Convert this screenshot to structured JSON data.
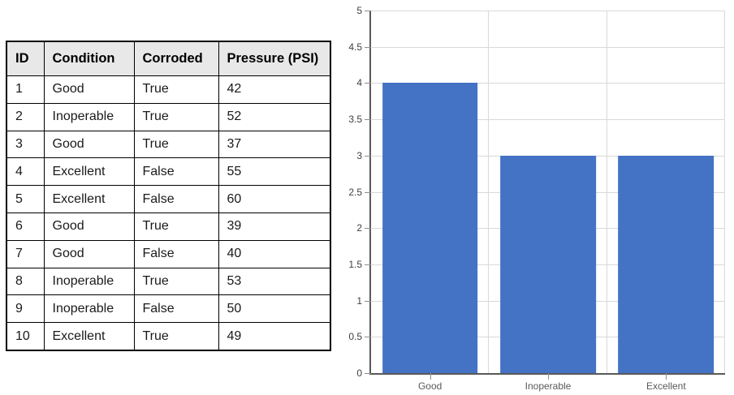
{
  "table": {
    "headers": [
      "ID",
      "Condition",
      "Corroded",
      "Pressure (PSI)"
    ],
    "rows": [
      [
        "1",
        "Good",
        "True",
        "42"
      ],
      [
        "2",
        "Inoperable",
        "True",
        "52"
      ],
      [
        "3",
        "Good",
        "True",
        "37"
      ],
      [
        "4",
        "Excellent",
        "False",
        "55"
      ],
      [
        "5",
        "Excellent",
        "False",
        "60"
      ],
      [
        "6",
        "Good",
        "True",
        "39"
      ],
      [
        "7",
        "Good",
        "False",
        "40"
      ],
      [
        "8",
        "Inoperable",
        "True",
        "53"
      ],
      [
        "9",
        "Inoperable",
        "False",
        "50"
      ],
      [
        "10",
        "Excellent",
        "True",
        "49"
      ]
    ],
    "header_bg": "#E8E8E8",
    "border_color": "#000000"
  },
  "chart_data": {
    "type": "bar",
    "categories": [
      "Good",
      "Inoperable",
      "Excellent"
    ],
    "values": [
      4,
      3,
      3
    ],
    "title": "",
    "xlabel": "",
    "ylabel": "",
    "ylim": [
      0,
      5
    ],
    "ytick_step": 0.5,
    "ytick_labels": [
      "0",
      "0.5",
      "1",
      "1.5",
      "2",
      "2.5",
      "3",
      "3.5",
      "4",
      "4.5",
      "5"
    ],
    "grid": true,
    "legend_position": "none",
    "bar_color": "#4472C4",
    "gridline_color": "#D9D9D9",
    "axis_color": "#595959",
    "tick_color": "#8c8c8c"
  }
}
